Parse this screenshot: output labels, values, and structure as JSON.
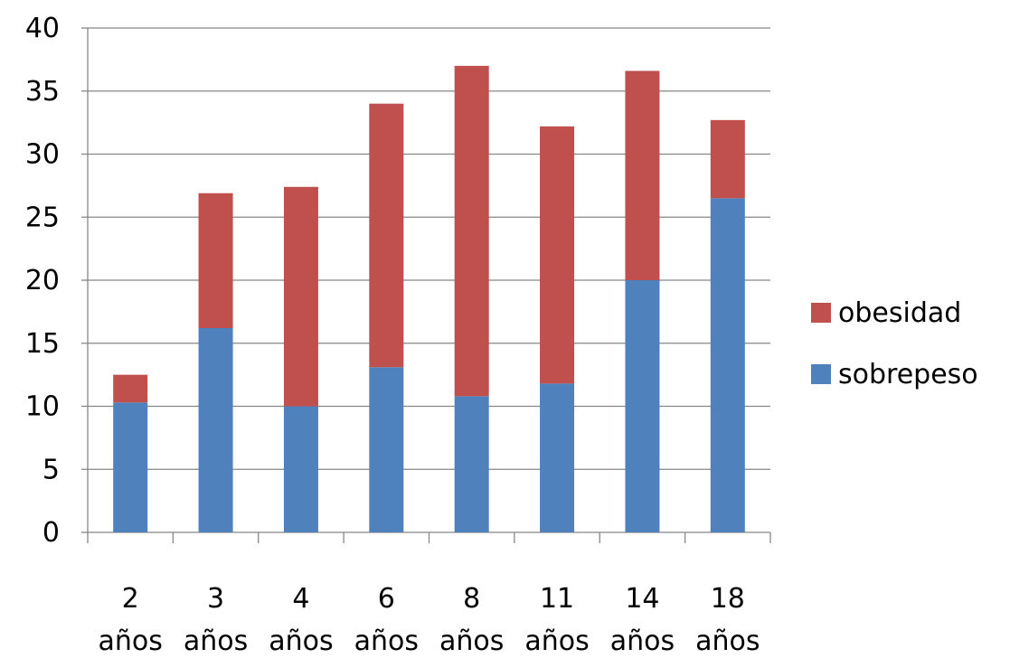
{
  "chart_data": {
    "type": "bar",
    "stacked": true,
    "categories": [
      [
        "2",
        "años"
      ],
      [
        "3",
        "años"
      ],
      [
        "4",
        "años"
      ],
      [
        "6",
        "años"
      ],
      [
        "8",
        "años"
      ],
      [
        "11",
        "años"
      ],
      [
        "14",
        "años"
      ],
      [
        "18",
        "años"
      ]
    ],
    "series": [
      {
        "name": "sobrepeso",
        "color": "#4F81BD",
        "values": [
          10.3,
          16.2,
          10.0,
          13.1,
          10.8,
          11.8,
          20.0,
          26.5
        ]
      },
      {
        "name": "obesidad",
        "color": "#C0504D",
        "values": [
          2.2,
          10.7,
          17.4,
          20.9,
          26.2,
          20.4,
          16.6,
          6.2
        ]
      }
    ],
    "ylim": [
      0,
      40
    ],
    "yticks": [
      "0",
      "5",
      "10",
      "15",
      "20",
      "25",
      "30",
      "35",
      "40"
    ],
    "grid": true,
    "legend_position": "right",
    "legend_order": [
      "obesidad",
      "sobrepeso"
    ]
  }
}
